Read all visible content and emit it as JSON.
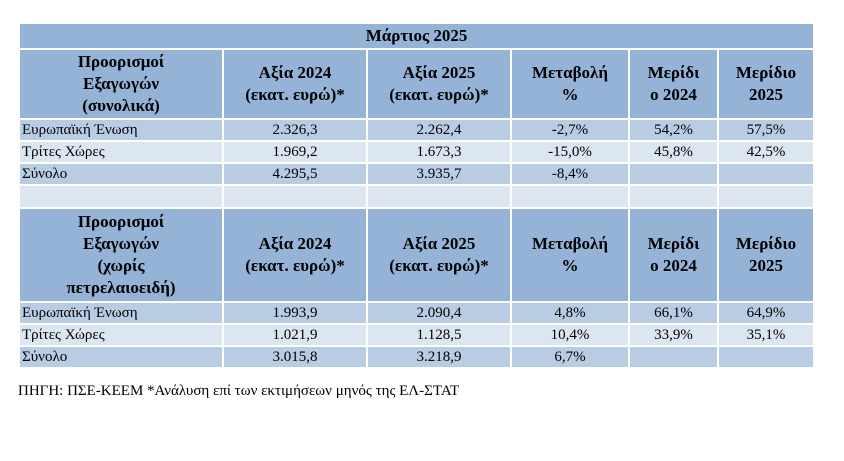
{
  "table": {
    "title": "Μάρτιος 2025",
    "section1": {
      "headers": [
        "Προορισμοί\nΕξαγωγών\n(συνολικά)",
        "Αξία 2024\n(εκατ. ευρώ)*",
        "Αξία 2025\n(εκατ. ευρώ)*",
        "Μεταβολή\n%",
        "Μερίδι\nο 2024",
        "Μερίδιο\n2025"
      ],
      "rows": [
        [
          "Ευρωπαϊκή Ένωση",
          "2.326,3",
          "2.262,4",
          "-2,7%",
          "54,2%",
          "57,5%"
        ],
        [
          "Τρίτες Χώρες",
          "1.969,2",
          "1.673,3",
          "-15,0%",
          "45,8%",
          "42,5%"
        ],
        [
          "Σύνολο",
          "4.295,5",
          "3.935,7",
          "-8,4%",
          "",
          ""
        ]
      ]
    },
    "section2": {
      "headers": [
        "Προορισμοί\nΕξαγωγών\n(χωρίς\nπετρελαιοειδή)",
        "Αξία 2024\n(εκατ. ευρώ)*",
        "Αξία 2025\n(εκατ. ευρώ)*",
        "Μεταβολή\n%",
        "Μερίδι\nο 2024",
        "Μερίδιο\n2025"
      ],
      "rows": [
        [
          "Ευρωπαϊκή Ένωση",
          "1.993,9",
          "2.090,4",
          "4,8%",
          "66,1%",
          "64,9%"
        ],
        [
          "Τρίτες Χώρες",
          "1.021,9",
          "1.128,5",
          "10,4%",
          "33,9%",
          "35,1%"
        ],
        [
          "Σύνολο",
          "3.015,8",
          "3.218,9",
          "6,7%",
          "",
          ""
        ]
      ]
    }
  },
  "source_note": "ΠΗΓΗ: ΠΣΕ-ΚΕΕΜ *Ανάλυση επί των εκτιμήσεων μηνός της ΕΛ-ΣΤΑΤ",
  "colors": {
    "header_fill": "#95b3d7",
    "row_dark": "#b8cce4",
    "row_light": "#dce6f1"
  }
}
